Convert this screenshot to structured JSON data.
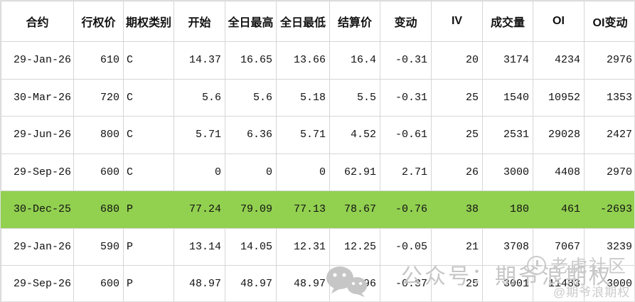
{
  "table": {
    "columns": [
      {
        "key": "contract",
        "label": "合约"
      },
      {
        "key": "strike",
        "label": "行权价"
      },
      {
        "key": "type",
        "label": "期权类别"
      },
      {
        "key": "open",
        "label": "开始"
      },
      {
        "key": "high",
        "label": "全日最高"
      },
      {
        "key": "low",
        "label": "全日最低"
      },
      {
        "key": "settle",
        "label": "结算价"
      },
      {
        "key": "change",
        "label": "变动"
      },
      {
        "key": "iv",
        "label": "IV"
      },
      {
        "key": "volume",
        "label": "成交量"
      },
      {
        "key": "oi",
        "label": "OI"
      },
      {
        "key": "oi-change",
        "label": "OI变动"
      }
    ],
    "highlight_color": "#92d050",
    "rows": [
      {
        "highlighted": false,
        "cells": [
          "29-Jan-26",
          "610",
          "C",
          "14.37",
          "16.65",
          "13.66",
          "16.4",
          "-0.31",
          "20",
          "3174",
          "4234",
          "2976"
        ]
      },
      {
        "highlighted": false,
        "cells": [
          "30-Mar-26",
          "720",
          "C",
          "5.6",
          "5.6",
          "5.18",
          "5.5",
          "-0.31",
          "25",
          "1540",
          "10952",
          "1353"
        ]
      },
      {
        "highlighted": false,
        "cells": [
          "29-Jun-26",
          "800",
          "C",
          "5.71",
          "6.36",
          "5.71",
          "4.52",
          "-0.61",
          "25",
          "2531",
          "29028",
          "2427"
        ]
      },
      {
        "highlighted": false,
        "cells": [
          "29-Sep-26",
          "600",
          "C",
          "0",
          "0",
          "0",
          "62.91",
          "2.71",
          "26",
          "3000",
          "4408",
          "2970"
        ]
      },
      {
        "highlighted": true,
        "cells": [
          "30-Dec-25",
          "680",
          "P",
          "77.24",
          "79.09",
          "77.13",
          "78.67",
          "-0.76",
          "38",
          "180",
          "461",
          "-2693"
        ]
      },
      {
        "highlighted": false,
        "cells": [
          "29-Jan-26",
          "590",
          "P",
          "13.14",
          "14.05",
          "12.31",
          "12.25",
          "-0.05",
          "21",
          "3708",
          "7067",
          "3239"
        ]
      },
      {
        "highlighted": false,
        "cells": [
          "29-Sep-26",
          "600",
          "P",
          "48.97",
          "48.97",
          "48.97",
          "47.96",
          "-0.37",
          "25",
          "3001",
          "11483",
          "3000"
        ]
      }
    ]
  },
  "watermarks": {
    "wechat_label": "公众号：期爷浪期权",
    "community_label": "老虎社区",
    "handle_label": "@期爷浪期权"
  }
}
